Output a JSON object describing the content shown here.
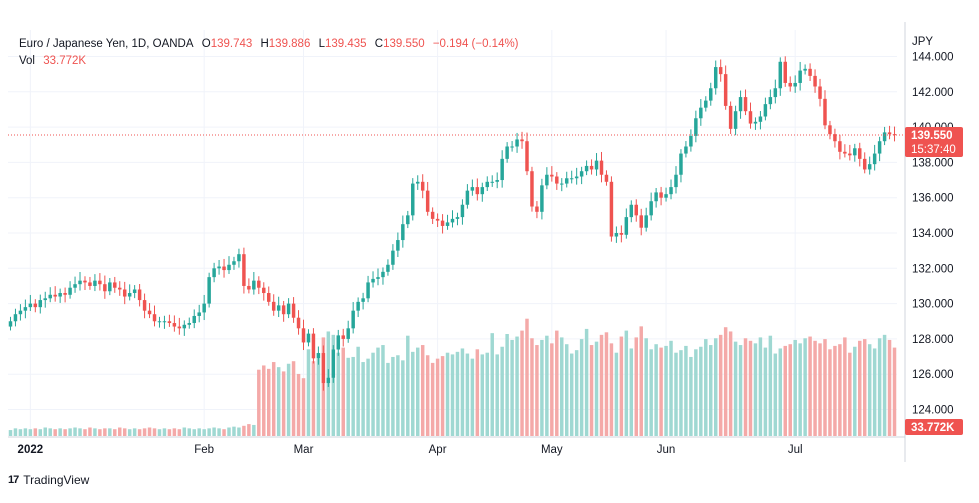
{
  "legend": {
    "symbol": "Euro / Japanese Yen, 1D, OANDA",
    "o_label": "O",
    "o_value": "139.743",
    "h_label": "H",
    "h_value": "139.886",
    "l_label": "L",
    "l_value": "139.435",
    "c_label": "C",
    "c_value": "139.550",
    "change": "−0.194 (−0.14%)",
    "vol_label": "Vol",
    "vol_value": "33.772K"
  },
  "footer": {
    "logo_mark": "17",
    "brand": "TradingView"
  },
  "colors": {
    "up": "#26a69a",
    "down": "#ef5350",
    "vol_up": "#9fd8d2",
    "vol_down": "#f4a9a8",
    "grid": "#f0f3fa",
    "axis_text": "#131722"
  },
  "chart_data": {
    "type": "candlestick",
    "title": "Euro / Japanese Yen, 1D, OANDA",
    "currency_label": "JPY",
    "y_ticks": [
      "124.000",
      "126.000",
      "128.000",
      "130.000",
      "132.000",
      "134.000",
      "136.000",
      "138.000",
      "140.000",
      "142.000",
      "144.000"
    ],
    "x_ticks": [
      "2022",
      "Feb",
      "Mar",
      "Apr",
      "May",
      "Jun",
      "Jul"
    ],
    "ylim": [
      122.5,
      145.5
    ],
    "last_price": "139.550",
    "last_price_value": 139.55,
    "countdown": "15:37:40",
    "last_volume": "33.772K",
    "grid": true,
    "series": [
      {
        "name": "price",
        "close_path": [
          129.0,
          129.4,
          129.6,
          129.8,
          130.0,
          129.8,
          130.2,
          130.3,
          130.5,
          130.4,
          130.6,
          130.5,
          130.9,
          131.1,
          131.3,
          131.2,
          131.0,
          131.3,
          131.1,
          130.7,
          131.2,
          130.9,
          130.8,
          130.4,
          130.6,
          130.8,
          130.2,
          129.6,
          129.4,
          129.0,
          129.0,
          129.0,
          128.9,
          128.7,
          128.6,
          128.8,
          128.9,
          129.3,
          129.5,
          130.0,
          131.5,
          132.0,
          132.1,
          131.9,
          132.2,
          132.4,
          132.8,
          131.0,
          130.8,
          131.3,
          130.9,
          130.6,
          130.1,
          129.6,
          129.9,
          129.4,
          130.0,
          129.2,
          128.6,
          127.8,
          128.3,
          126.9,
          127.2,
          125.5,
          125.8,
          127.4,
          128.2,
          128.0,
          128.6,
          129.6,
          130.1,
          130.3,
          131.2,
          131.4,
          131.5,
          131.8,
          132.2,
          133.0,
          133.6,
          134.5,
          135.0,
          136.8,
          136.9,
          136.4,
          135.2,
          134.8,
          134.7,
          134.4,
          134.6,
          134.8,
          134.9,
          135.6,
          136.4,
          136.6,
          136.2,
          136.6,
          136.9,
          136.9,
          137.0,
          138.2,
          138.9,
          138.9,
          139.3,
          139.2,
          137.5,
          135.5,
          135.2,
          136.7,
          137.3,
          137.2,
          136.8,
          136.8,
          137.1,
          137.1,
          137.2,
          137.5,
          137.8,
          137.6,
          138.1,
          137.3,
          136.9,
          133.8,
          134.0,
          133.9,
          134.9,
          135.6,
          135.0,
          134.3,
          135.0,
          135.8,
          136.3,
          136.0,
          136.2,
          136.6,
          137.3,
          138.5,
          138.9,
          139.5,
          140.5,
          141.1,
          141.5,
          142.2,
          143.4,
          143.0,
          141.2,
          139.9,
          140.9,
          141.7,
          140.9,
          140.2,
          140.3,
          140.6,
          141.3,
          141.7,
          142.2,
          143.7,
          142.5,
          142.3,
          142.5,
          143.2,
          143.3,
          142.9,
          142.3,
          141.6,
          140.1,
          139.6,
          139.2,
          138.6,
          138.5,
          138.4,
          138.8,
          138.2,
          137.6,
          137.9,
          138.5,
          139.2,
          139.7,
          139.6,
          139.55
        ]
      },
      {
        "name": "volume",
        "values": [
          0.7,
          0.9,
          0.8,
          0.9,
          0.8,
          0.9,
          0.8,
          1.0,
          0.9,
          0.8,
          0.9,
          0.8,
          0.9,
          1.0,
          0.9,
          0.8,
          1.0,
          0.9,
          0.8,
          0.9,
          0.9,
          0.8,
          1.0,
          0.9,
          0.8,
          0.9,
          0.8,
          0.9,
          1.0,
          0.9,
          0.8,
          0.9,
          0.8,
          0.9,
          0.8,
          1.0,
          0.9,
          0.8,
          0.9,
          0.8,
          0.9,
          1.0,
          0.9,
          0.8,
          1.0,
          1.1,
          1.0,
          1.2,
          1.4,
          1.3,
          7.8,
          8.3,
          7.9,
          8.7,
          8.1,
          7.6,
          8.5,
          8.8,
          7.3,
          6.8,
          10.2,
          8.8,
          9.1,
          11.6,
          12.3,
          11.9,
          9.8,
          10.4,
          9.2,
          9.3,
          10.5,
          8.7,
          9.1,
          9.8,
          10.4,
          10.7,
          8.6,
          9.3,
          9.5,
          8.9,
          11.8,
          9.9,
          10.4,
          10.7,
          9.5,
          8.6,
          9.1,
          9.4,
          9.8,
          9.6,
          9.9,
          10.3,
          9.7,
          9.1,
          10.2,
          9.6,
          9.8,
          12.1,
          9.6,
          10.5,
          12.0,
          11.3,
          11.7,
          12.4,
          13.8,
          11.5,
          10.7,
          11.3,
          11.8,
          10.9,
          12.4,
          11.6,
          10.8,
          9.7,
          10.1,
          11.4,
          12.6,
          10.7,
          11.1,
          11.9,
          12.2,
          10.9,
          9.8,
          11.7,
          12.4,
          10.3,
          11.6,
          12.9,
          11.5,
          10.2,
          10.8,
          10.4,
          10.6,
          11.2,
          9.8,
          10.1,
          10.6,
          9.3,
          10.2,
          10.5,
          11.4,
          10.7,
          11.5,
          11.9,
          12.8,
          12.3,
          11.1,
          10.7,
          11.5,
          11.2,
          10.9,
          11.6,
          10.4,
          11.8,
          9.7,
          10.3,
          10.6,
          10.8,
          11.3,
          10.9,
          11.5,
          11.7,
          11.2,
          10.9,
          11.4,
          10.2,
          10.6,
          10.8,
          11.6,
          9.8,
          10.5,
          11.2,
          11.4,
          10.8,
          10.3,
          11.5,
          11.9,
          11.3,
          10.4,
          9.7
        ]
      }
    ]
  }
}
